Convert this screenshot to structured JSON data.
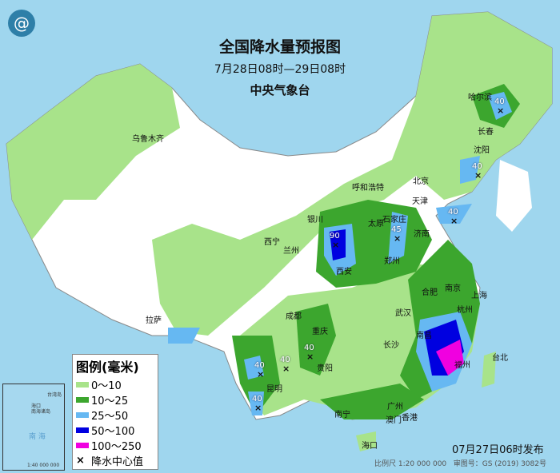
{
  "header": {
    "title": "全国降水量预报图",
    "period": "7月28日08时—29日08时",
    "issuer": "中央气象台",
    "logo_icon": "cma-logo"
  },
  "cities": [
    {
      "name": "乌鲁木齐"
    },
    {
      "name": "哈尔滨"
    },
    {
      "name": "长春"
    },
    {
      "name": "沈阳"
    },
    {
      "name": "北京"
    },
    {
      "name": "天津"
    },
    {
      "name": "呼和浩特"
    },
    {
      "name": "石家庄"
    },
    {
      "name": "太原"
    },
    {
      "name": "济南"
    },
    {
      "name": "银川"
    },
    {
      "name": "西宁"
    },
    {
      "name": "兰州"
    },
    {
      "name": "西安"
    },
    {
      "name": "郑州"
    },
    {
      "name": "合肥"
    },
    {
      "name": "南京"
    },
    {
      "name": "上海"
    },
    {
      "name": "杭州"
    },
    {
      "name": "武汉"
    },
    {
      "name": "成都"
    },
    {
      "name": "重庆"
    },
    {
      "name": "拉萨"
    },
    {
      "name": "长沙"
    },
    {
      "name": "南昌"
    },
    {
      "name": "福州"
    },
    {
      "name": "台北"
    },
    {
      "name": "贵阳"
    },
    {
      "name": "昆明"
    },
    {
      "name": "南宁"
    },
    {
      "name": "广州"
    },
    {
      "name": "澳门"
    },
    {
      "name": "香港"
    },
    {
      "name": "海口"
    }
  ],
  "centers": [
    {
      "value": "40"
    },
    {
      "value": "40"
    },
    {
      "value": "40"
    },
    {
      "value": "90"
    },
    {
      "value": "45"
    },
    {
      "value": "40"
    },
    {
      "value": "40"
    },
    {
      "value": "40"
    },
    {
      "value": "40"
    }
  ],
  "legend": {
    "title": "图例(毫米)",
    "items": [
      {
        "label": "0～10",
        "color": "#a8e38a"
      },
      {
        "label": "10～25",
        "color": "#3ca62e"
      },
      {
        "label": "25～50",
        "color": "#66b8f2"
      },
      {
        "label": "50～100",
        "color": "#0000e0"
      },
      {
        "label": "100～250",
        "color": "#f000e0"
      }
    ],
    "center_label": "降水中心值"
  },
  "inset": {
    "labels": [
      "海口",
      "南海诸岛",
      "南 海",
      "台湾岛",
      "1:40 000 000"
    ]
  },
  "footer": {
    "issued": "07月27日06时发布",
    "scale": "比例尺 1:20 000 000",
    "review": "审图号：GS (2019) 3082号"
  }
}
